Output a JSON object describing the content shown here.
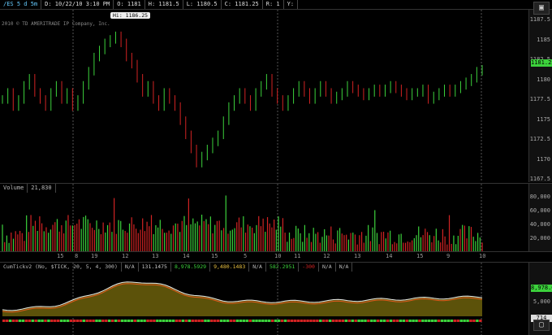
{
  "header": {
    "symbol": "/ES 5 d 5m",
    "date": "D: 10/22/10 3:10 PM",
    "open": "O: 1181",
    "high": "H: 1181.5",
    "low": "L: 1180.5",
    "close": "C: 1181.25",
    "range": "R: 1",
    "yflag": "Y:",
    "copyright": "2010 © TD AMERITRADE IP Company, Inc.",
    "hi_callout": "Hi: 1186.25",
    "last_price": "1181.25"
  },
  "price_axis": [
    "1187.5",
    "1185",
    "1182.5",
    "1180",
    "1177.5",
    "1175",
    "1172.5",
    "1170",
    "1167.5"
  ],
  "volume_header": {
    "label": "Volume",
    "value": "21,830"
  },
  "volume_axis": [
    "80,000",
    "60,000",
    "40,000",
    "20,000"
  ],
  "indicator_header": {
    "name": "CumTickv2 (No, $TICK, 20, 5, 4, 300)",
    "na1": "N/A",
    "v1": "131.1475",
    "v2": "8,978.5929",
    "v3": "9,480.1483",
    "na2": "N/A",
    "v4": "582.2951",
    "v5": "-300",
    "na3": "N/A",
    "na4": "N/A"
  },
  "indicator_axis": {
    "top_box": "8,978.6",
    "mid": "5,000",
    "bottom_box": "714"
  },
  "x_axis": [
    "15",
    "8",
    "19",
    "12",
    "13",
    "14",
    "15",
    "5",
    "10",
    "11",
    "12",
    "13",
    "14",
    "15",
    "9",
    "10"
  ],
  "colors": {
    "up": "#3cd23c",
    "down": "#d22323",
    "ind_fill": "#5c520a",
    "ind_line1": "#e8e8e8",
    "ind_line2": "#e05a1e"
  },
  "chart_data": {
    "type": "candlestick",
    "ylim": [
      1166,
      1189
    ],
    "volume_ylim": [
      0,
      90000
    ],
    "ohlc_close_approx": [
      1177,
      1178,
      1176,
      1177,
      1179,
      1180,
      1178,
      1177,
      1176,
      1178,
      1179,
      1177,
      1178,
      1176,
      1177,
      1179,
      1181,
      1183,
      1184,
      1185,
      1185.5,
      1186,
      1185,
      1183,
      1182,
      1180,
      1178,
      1179,
      1177,
      1176,
      1178,
      1177,
      1176,
      1174,
      1172,
      1170,
      1168,
      1169,
      1170,
      1171,
      1172,
      1174,
      1176,
      1177,
      1178,
      1177,
      1176,
      1178,
      1179,
      1180,
      1178,
      1177,
      1176,
      1177,
      1178,
      1179,
      1178,
      1177,
      1178,
      1179,
      1178,
      1177,
      1177.5,
      1178,
      1179,
      1178.5,
      1178,
      1177.5,
      1178,
      1178.5,
      1178,
      1178.5,
      1179,
      1178.5,
      1178,
      1177.5,
      1178,
      1178,
      1178.5,
      1177,
      1177.5,
      1178,
      1178.5,
      1178,
      1178.5,
      1179,
      1179.5,
      1180,
      1181,
      1181.25
    ],
    "hi_value": 1186.25
  }
}
